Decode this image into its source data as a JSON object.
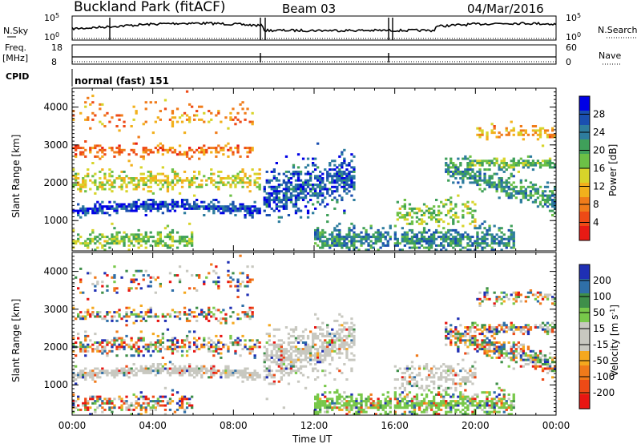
{
  "header": {
    "station": "Buckland Park (fitACF)",
    "beam": "Beam 03",
    "date": "04/Mar/2016"
  },
  "left_labels": {
    "nsky": "N.Sky",
    "nsky_top": "10^5",
    "nsky_bot": "10^0",
    "freq": "Freq.",
    "freq_unit": "[MHz]",
    "freq_top": "18",
    "freq_bot": "8",
    "cpid": "CPID"
  },
  "right_labels": {
    "nsearch": "N.Search",
    "nsearch_top": "10^5",
    "nsearch_bot": "10^0",
    "nave": "Nave",
    "nave_top": "60",
    "nave_bot": "0"
  },
  "cpid_text": "normal (fast) 151",
  "chart_data": [
    {
      "type": "heatmap",
      "panel": "power",
      "ylabel": "Slant Range [km]",
      "xlabel": "Time UT",
      "ylim": [
        200,
        4500
      ],
      "yticks": [
        "1000",
        "2000",
        "3000",
        "4000"
      ],
      "xticks": [
        "00:00",
        "04:00",
        "08:00",
        "12:00",
        "16:00",
        "20:00",
        "00:00"
      ],
      "colorbar": {
        "label": "Power [dB]",
        "ticks": [
          "4",
          "8",
          "12",
          "16",
          "20",
          "24",
          "28"
        ],
        "colors": [
          "#0000e6",
          "#1a4fb0",
          "#2e7d9e",
          "#3fa05a",
          "#6cc046",
          "#d7d42a",
          "#f2b01c",
          "#f07c1a",
          "#ee4a16",
          "#e81a14"
        ]
      }
    },
    {
      "type": "heatmap",
      "panel": "velocity",
      "ylabel": "Slant Range [km]",
      "xlabel": "Time UT",
      "ylim": [
        200,
        4500
      ],
      "yticks": [
        "1000",
        "2000",
        "3000",
        "4000"
      ],
      "xticks": [
        "00:00",
        "04:00",
        "08:00",
        "12:00",
        "16:00",
        "20:00",
        "00:00"
      ],
      "colorbar": {
        "label": "Velocity [m s^-1]",
        "ticks": [
          "200",
          "100",
          "50",
          "15",
          "-15",
          "-50",
          "-100",
          "-200"
        ],
        "colors": [
          "#1f2fb4",
          "#2f6fa8",
          "#3f8f4a",
          "#78c84a",
          "#c8c8c0",
          "#c8c8c0",
          "#f5a81e",
          "#f07a1a",
          "#ee4a16",
          "#e81612"
        ]
      }
    }
  ]
}
